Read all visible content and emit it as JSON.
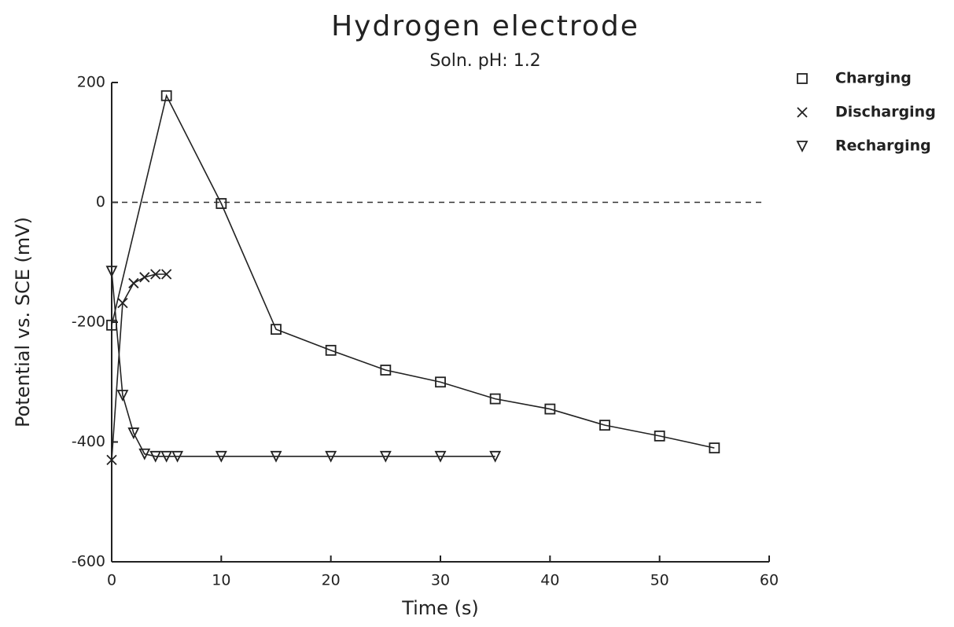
{
  "chart_data": {
    "type": "line",
    "title": "Hydrogen electrode",
    "subtitle": "Soln. pH: 1.2",
    "xlabel": "Time (s)",
    "ylabel": "Potential vs. SCE (mV)",
    "xlim": [
      0,
      60
    ],
    "xticks": [
      0,
      10,
      20,
      30,
      40,
      50,
      60
    ],
    "ylim": [
      -600,
      200
    ],
    "yticks": [
      -600,
      -400,
      -200,
      0,
      200
    ],
    "reference_line": 0,
    "legend": "upper right",
    "series": [
      {
        "name": "Charging",
        "color": "#222",
        "marker": "square",
        "x": [
          0,
          5,
          10,
          15,
          20,
          25,
          30,
          35,
          40,
          45,
          50,
          55
        ],
        "values": [
          -205,
          178,
          -2,
          -212,
          -247,
          -280,
          -300,
          -328,
          -345,
          -372,
          -390,
          -410
        ]
      },
      {
        "name": "Discharging",
        "color": "#222",
        "marker": "x",
        "x": [
          0,
          1,
          2,
          3,
          4,
          5
        ],
        "values": [
          -430,
          -168,
          -135,
          -125,
          -120,
          -120
        ]
      },
      {
        "name": "Recharging",
        "color": "#222",
        "marker": "triangle-down",
        "x": [
          0,
          1,
          2,
          3,
          4,
          5,
          6,
          10,
          15,
          20,
          25,
          30,
          35
        ],
        "values": [
          -115,
          -322,
          -385,
          -420,
          -424,
          -424,
          -424,
          -424,
          -424,
          -424,
          -424,
          -424,
          -424
        ]
      }
    ]
  }
}
